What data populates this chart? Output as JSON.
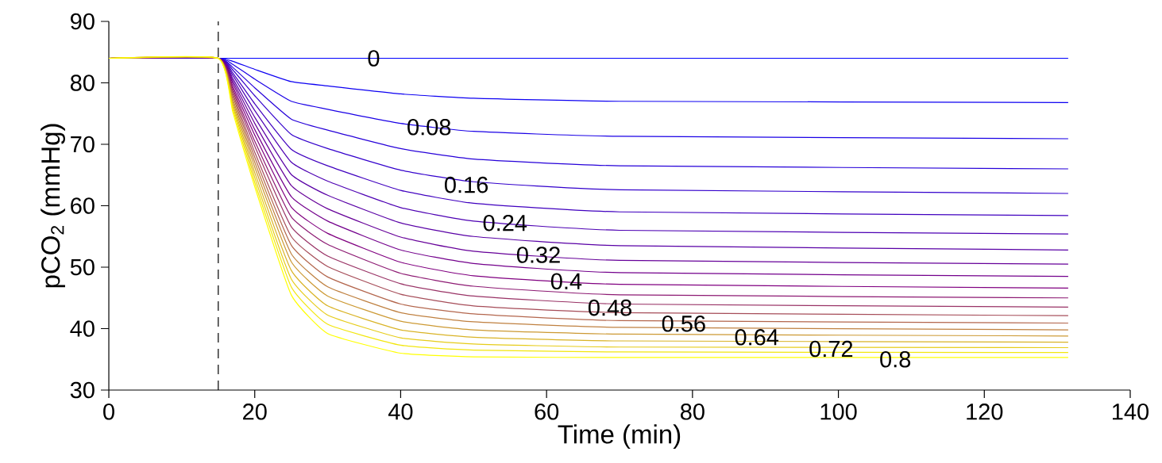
{
  "chart_data": {
    "type": "line",
    "xlabel": "Time (min)",
    "ylabel": "pCO$_{2}$ (mmHg)",
    "x": [
      0,
      15,
      17,
      20,
      25,
      30,
      40,
      50,
      70,
      131.5
    ],
    "xlim": [
      0,
      140
    ],
    "xticks": [
      0,
      20,
      40,
      60,
      80,
      100,
      120,
      140
    ],
    "ylim": [
      30,
      90
    ],
    "yticks": [
      30,
      40,
      50,
      60,
      70,
      80,
      90
    ],
    "marker": "none",
    "line_style": "solid",
    "series": [
      {
        "color": "#0000ff",
        "values": [
          84,
          84,
          84,
          84,
          84,
          84,
          84,
          84,
          84,
          84
        ]
      },
      {
        "color": "#0d00f2",
        "values": [
          84,
          84,
          83.5,
          82.2,
          80.2,
          79.5,
          78.2,
          77.5,
          77.0,
          76.8
        ]
      },
      {
        "color": "#1a00e6",
        "values": [
          84,
          84,
          83.0,
          80.6,
          77.0,
          75.7,
          73.4,
          72.1,
          71.3,
          70.9
        ]
      },
      {
        "color": "#2600d9",
        "values": [
          84,
          84,
          82.5,
          79.2,
          74.1,
          72.3,
          69.3,
          67.6,
          66.5,
          66.0
        ]
      },
      {
        "color": "#3300cc",
        "values": [
          84,
          84,
          82.1,
          77.9,
          71.6,
          69.3,
          65.8,
          63.9,
          62.6,
          62.0
        ]
      },
      {
        "color": "#4000bf",
        "values": [
          84,
          84,
          81.6,
          76.6,
          69.2,
          66.5,
          62.5,
          60.4,
          59.0,
          58.4
        ]
      },
      {
        "color": "#4d00b3",
        "values": [
          84,
          84,
          81.2,
          75.5,
          67.1,
          64.0,
          59.7,
          57.5,
          56.0,
          55.4
        ]
      },
      {
        "color": "#5900a6",
        "values": [
          84,
          84,
          80.7,
          74.4,
          65.1,
          61.7,
          57.2,
          55.0,
          53.5,
          52.8
        ]
      },
      {
        "color": "#660099",
        "values": [
          84,
          84,
          80.3,
          73.4,
          63.3,
          59.5,
          54.9,
          52.6,
          51.1,
          50.5
        ]
      },
      {
        "color": "#73008c",
        "values": [
          84,
          84,
          79.9,
          72.4,
          61.5,
          57.5,
          52.8,
          50.6,
          49.1,
          48.5
        ]
      },
      {
        "color": "#800080",
        "values": [
          84,
          84,
          79.4,
          71.5,
          59.8,
          55.5,
          50.8,
          48.6,
          47.2,
          46.6
        ]
      },
      {
        "color": "#8d1a73",
        "values": [
          84,
          84,
          79.0,
          70.5,
          58.2,
          53.7,
          49.0,
          46.9,
          45.5,
          45.0
        ]
      },
      {
        "color": "#993366",
        "values": [
          84,
          84,
          78.6,
          69.7,
          56.6,
          51.8,
          47.3,
          45.3,
          44.0,
          43.5
        ]
      },
      {
        "color": "#a64d59",
        "values": [
          84,
          84,
          78.2,
          68.7,
          55.0,
          50.1,
          45.6,
          43.7,
          42.6,
          42.1
        ]
      },
      {
        "color": "#b3664d",
        "values": [
          84,
          84,
          77.8,
          67.9,
          53.6,
          48.4,
          44.0,
          42.4,
          41.3,
          40.9
        ]
      },
      {
        "color": "#bf8040",
        "values": [
          84,
          84,
          77.3,
          67.1,
          52.2,
          46.8,
          42.6,
          41.1,
          40.2,
          39.8
        ]
      },
      {
        "color": "#cc9933",
        "values": [
          84,
          84,
          76.9,
          66.3,
          50.9,
          45.3,
          41.2,
          39.8,
          39.1,
          38.8
        ]
      },
      {
        "color": "#d9b326",
        "values": [
          84,
          84,
          76.5,
          65.4,
          49.5,
          43.7,
          39.8,
          38.6,
          38.0,
          37.8
        ]
      },
      {
        "color": "#e6cc1a",
        "values": [
          84,
          84,
          76.1,
          64.6,
          48.1,
          42.2,
          38.5,
          37.5,
          37.0,
          36.9
        ]
      },
      {
        "color": "#f2e60d",
        "values": [
          84,
          84,
          75.7,
          63.8,
          46.8,
          40.7,
          37.3,
          36.5,
          36.2,
          36.1
        ]
      },
      {
        "color": "#ffff00",
        "values": [
          84,
          84,
          75.2,
          63.1,
          45.5,
          39.2,
          36.0,
          35.4,
          35.3,
          35.3
        ]
      }
    ],
    "ref_lines": [
      {
        "axis": "x",
        "value": 15,
        "color": "#000000",
        "line_style": "dashed"
      }
    ],
    "annotations": [
      {
        "text": "0",
        "x": 36.3,
        "y": 84
      },
      {
        "text": "0.08",
        "x": 43.9,
        "y": 72.8
      },
      {
        "text": "0.16",
        "x": 49,
        "y": 63.4
      },
      {
        "text": "0.24",
        "x": 54.3,
        "y": 57.2
      },
      {
        "text": "0.32",
        "x": 58.9,
        "y": 52.0
      },
      {
        "text": "0.4",
        "x": 62.7,
        "y": 47.7
      },
      {
        "text": "0.48",
        "x": 68.7,
        "y": 43.4
      },
      {
        "text": "0.56",
        "x": 78.8,
        "y": 40.8
      },
      {
        "text": "0.64",
        "x": 88.8,
        "y": 38.6
      },
      {
        "text": "0.72",
        "x": 99,
        "y": 36.7
      },
      {
        "text": "0.8",
        "x": 107.8,
        "y": 35.0
      }
    ]
  }
}
